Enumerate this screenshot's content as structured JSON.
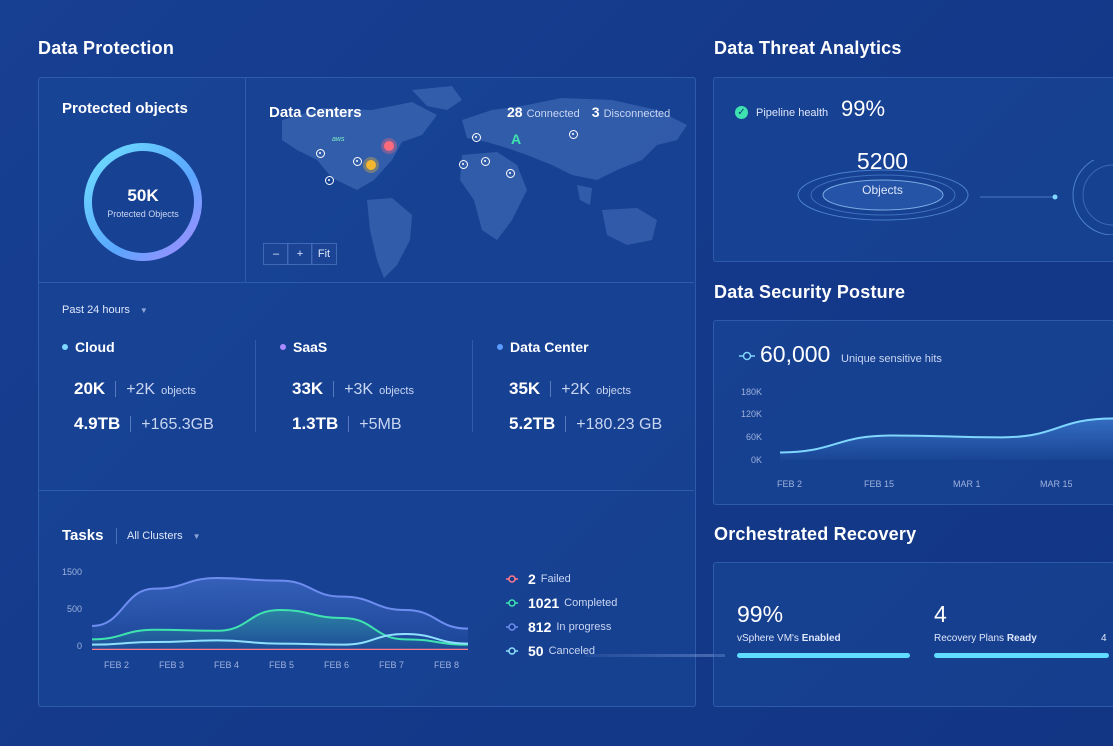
{
  "sections": {
    "data_protection": "Data Protection",
    "data_threat_analytics": "Data Threat Analytics",
    "data_security_posture": "Data Security Posture",
    "orchestrated_recovery": "Orchestrated Recovery"
  },
  "protected_objects": {
    "title": "Protected objects",
    "value": "50K",
    "label": "Protected Objects"
  },
  "data_centers": {
    "title": "Data Centers",
    "connected_count": "28",
    "connected_label": "Connected",
    "disconnected_count": "3",
    "disconnected_label": "Disconnected",
    "aws_label": "aws",
    "azure_label": "A",
    "zoom_out": "–",
    "zoom_in": "+",
    "fit": "Fit"
  },
  "time_filter": {
    "value": "Past 24 hours"
  },
  "stats": [
    {
      "name": "Cloud",
      "color": "#7fd6ff",
      "objects": "20K",
      "objects_delta": "+2K",
      "objects_unit": "objects",
      "size": "4.9TB",
      "size_delta": "+165.3GB"
    },
    {
      "name": "SaaS",
      "color": "#a98bff",
      "objects": "33K",
      "objects_delta": "+3K",
      "objects_unit": "objects",
      "size": "1.3TB",
      "size_delta": "+5MB"
    },
    {
      "name": "Data Center",
      "color": "#5b9dff",
      "objects": "35K",
      "objects_delta": "+2K",
      "objects_unit": "objects",
      "size": "5.2TB",
      "size_delta": "+180.23 GB"
    }
  ],
  "tasks": {
    "title": "Tasks",
    "filter": "All Clusters",
    "y_ticks": [
      "1500",
      "500",
      "0"
    ],
    "x_ticks": [
      "FEB 2",
      "FEB 3",
      "FEB 4",
      "FEB 5",
      "FEB 6",
      "FEB 7",
      "FEB 8"
    ],
    "legend": [
      {
        "count": "2",
        "label": "Failed",
        "color": "#ff7a8a"
      },
      {
        "count": "1021",
        "label": "Completed",
        "color": "#3fe3b0"
      },
      {
        "count": "812",
        "label": "In progress",
        "color": "#6d8df0"
      },
      {
        "count": "50",
        "label": "Canceled",
        "color": "#8fe0ff"
      }
    ]
  },
  "threat": {
    "pipeline_label": "Pipeline health",
    "pipeline_value": "99%",
    "objects_value": "5200",
    "objects_label": "Objects"
  },
  "posture": {
    "value": "60,000",
    "label": "Unique sensitive hits",
    "y_ticks": [
      "180K",
      "120K",
      "60K",
      "0K"
    ],
    "x_ticks": [
      "FEB 2",
      "FEB 15",
      "MAR 1",
      "MAR 15"
    ]
  },
  "recovery": {
    "vm_value": "99%",
    "vm_label": "vSphere VM's",
    "vm_label_bold": "Enabled",
    "plans_value": "4",
    "plans_label": "Recovery Plans",
    "plans_label_bold": "Ready",
    "plans_total": "4"
  },
  "chart_data": [
    {
      "type": "area",
      "title": "Tasks",
      "x": [
        "FEB 2",
        "FEB 3",
        "FEB 4",
        "FEB 5",
        "FEB 6",
        "FEB 7",
        "FEB 8"
      ],
      "ylim": [
        0,
        1500
      ],
      "series": [
        {
          "name": "In progress",
          "values": [
            450,
            1150,
            1350,
            1300,
            1000,
            750,
            400
          ]
        },
        {
          "name": "Completed",
          "values": [
            200,
            380,
            360,
            750,
            600,
            200,
            100
          ]
        },
        {
          "name": "Canceled",
          "values": [
            100,
            150,
            180,
            120,
            100,
            300,
            120
          ]
        },
        {
          "name": "Failed",
          "values": [
            5,
            5,
            5,
            5,
            5,
            5,
            5
          ]
        }
      ]
    },
    {
      "type": "area",
      "title": "Unique sensitive hits",
      "x": [
        "FEB 2",
        "FEB 15",
        "MAR 1",
        "MAR 15"
      ],
      "ylim": [
        0,
        180000
      ],
      "series": [
        {
          "name": "Unique sensitive hits",
          "values": [
            20000,
            65000,
            60000,
            110000
          ]
        }
      ]
    }
  ]
}
